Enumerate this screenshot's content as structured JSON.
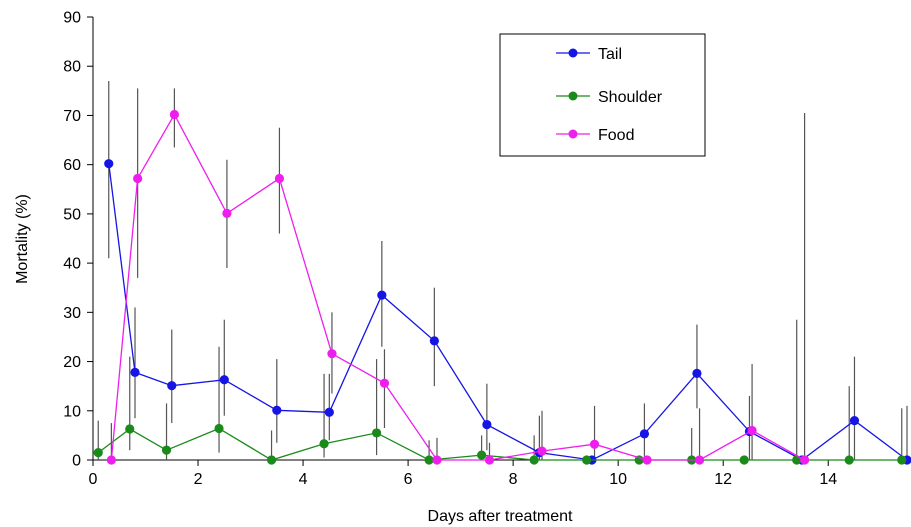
{
  "chart_data": {
    "type": "line",
    "title": "",
    "xlabel": "Days after treatment",
    "ylabel": "Mortality (%)",
    "xlim": [
      0,
      15.5
    ],
    "ylim": [
      0,
      90
    ],
    "xticks": [
      0,
      2,
      4,
      6,
      8,
      10,
      12,
      14
    ],
    "yticks": [
      0,
      10,
      20,
      30,
      40,
      50,
      60,
      70,
      80,
      90
    ],
    "grid": false,
    "legend": {
      "placement": "top-right"
    },
    "error_bars": true,
    "series": [
      {
        "name": "Tail",
        "color": "#1515e6",
        "x": [
          0.3,
          0.8,
          1.5,
          2.5,
          3.5,
          4.5,
          5.5,
          6.5,
          7.5,
          8.5,
          9.5,
          10.5,
          11.5,
          12.5,
          13.5,
          14.5,
          15.5
        ],
        "y": [
          60.2,
          17.8,
          15.1,
          16.3,
          10.1,
          9.7,
          33.5,
          24.2,
          7.2,
          1.5,
          0,
          5.3,
          17.6,
          5.8,
          0,
          8.0,
          0
        ],
        "err_low": [
          41,
          8.5,
          7.5,
          9,
          3.5,
          4,
          23,
          15,
          2,
          0,
          0,
          0,
          10.5,
          0,
          0,
          0,
          0
        ],
        "err_high": [
          77,
          31,
          26.5,
          28.5,
          20.5,
          17.5,
          44.5,
          35,
          15.5,
          9,
          0,
          11.5,
          27.5,
          13,
          0,
          21,
          11
        ]
      },
      {
        "name": "Shoulder",
        "color": "#1a8a1a",
        "x": [
          0.1,
          0.7,
          1.4,
          2.4,
          3.4,
          4.4,
          5.4,
          6.4,
          7.4,
          8.4,
          9.4,
          10.4,
          11.4,
          12.4,
          13.4,
          14.4,
          15.4
        ],
        "y": [
          1.5,
          6.3,
          2.0,
          6.4,
          0,
          3.3,
          5.5,
          0,
          1.0,
          0,
          0,
          0,
          0,
          0,
          0,
          0,
          0
        ],
        "err_low": [
          0,
          2,
          0,
          1.5,
          0,
          0.5,
          1,
          0,
          0,
          0,
          0,
          0,
          0,
          0,
          0,
          0,
          0
        ],
        "err_high": [
          8,
          21,
          11.5,
          23,
          6,
          17.5,
          20.5,
          4,
          5,
          5,
          0,
          0,
          6.5,
          0,
          28.5,
          15,
          10.5
        ]
      },
      {
        "name": "Food",
        "color": "#ee1fee",
        "x": [
          0.35,
          0.85,
          1.55,
          2.55,
          3.55,
          4.55,
          5.55,
          6.55,
          7.55,
          8.55,
          9.55,
          10.55,
          11.55,
          12.55,
          13.55
        ],
        "y": [
          0,
          57.2,
          70.2,
          50.1,
          57.2,
          21.6,
          15.6,
          0,
          0,
          1.8,
          3.2,
          0,
          0,
          6.0,
          0
        ],
        "err_low": [
          0,
          37,
          63.5,
          39,
          46,
          13.5,
          6.5,
          0,
          0,
          0,
          0,
          0,
          0,
          0,
          0
        ],
        "err_high": [
          7.5,
          75.5,
          75.5,
          61,
          67.5,
          30,
          22.5,
          4.5,
          3.5,
          10,
          11,
          0,
          10.5,
          19.5,
          70.5
        ]
      }
    ]
  }
}
